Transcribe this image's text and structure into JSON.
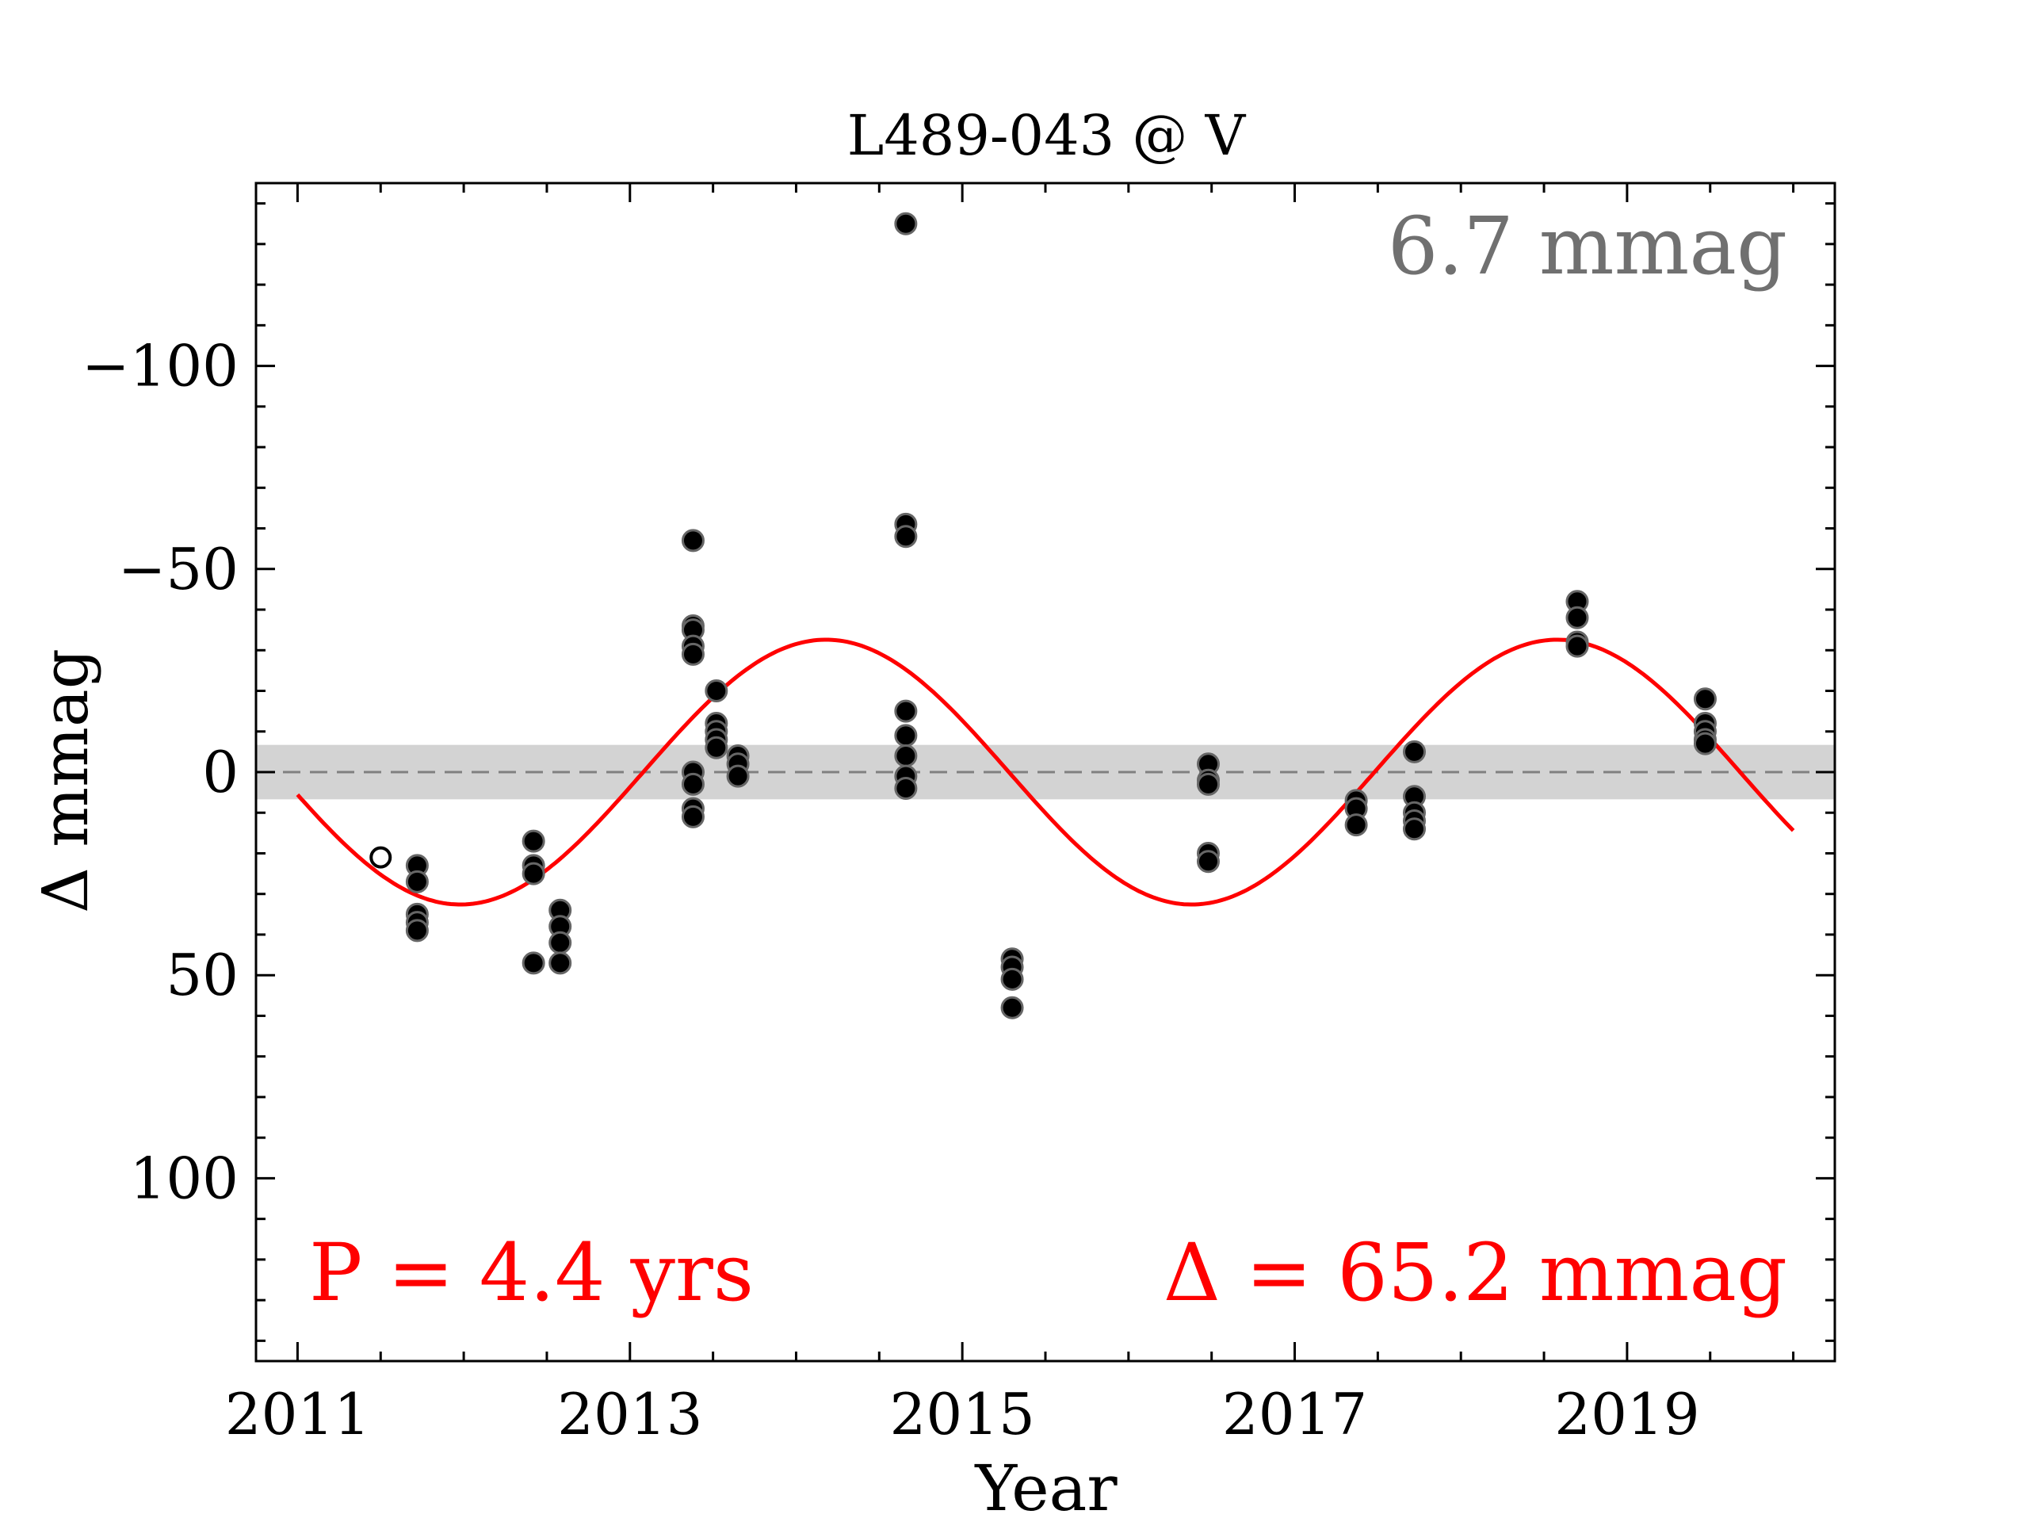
{
  "chart_data": {
    "type": "scatter",
    "title": "L489-043 @ V",
    "xlabel": "Year",
    "ylabel": "Δ  mmag",
    "xlim": [
      2010.75,
      2020.25
    ],
    "ylim": [
      145,
      -145
    ],
    "y_inverted": true,
    "xticks": [
      2011,
      2013,
      2015,
      2017,
      2019
    ],
    "yticks": [
      -100,
      -50,
      0,
      50,
      100
    ],
    "ytick_labels": [
      "−100",
      "−50",
      "0",
      "50",
      "100"
    ],
    "grid": false,
    "band": {
      "center": 0,
      "halfwidth": 6.7,
      "color": "#d3d3d3"
    },
    "annotations": {
      "scatter_label": "6.7 mmag",
      "period_label": "P = 4.4 yrs",
      "amplitude_label": "Δ = 65.2 mmag"
    },
    "colors": {
      "fit": "#ff0000",
      "points": "#000000",
      "band": "#d3d3d3",
      "scatter_text": "#707070",
      "zero_line": "#808080"
    },
    "fit": {
      "type": "sinusoid",
      "period": 4.4,
      "amplitude": 32.6,
      "phase_min_x": 2011.98,
      "x_start": 2011.0,
      "x_end": 2020.0
    },
    "points": [
      {
        "x": 2011.72,
        "y": 23
      },
      {
        "x": 2011.72,
        "y": 27
      },
      {
        "x": 2011.72,
        "y": 35
      },
      {
        "x": 2011.72,
        "y": 37
      },
      {
        "x": 2011.72,
        "y": 39
      },
      {
        "x": 2012.42,
        "y": 17
      },
      {
        "x": 2012.42,
        "y": 23
      },
      {
        "x": 2012.42,
        "y": 25
      },
      {
        "x": 2012.42,
        "y": 47
      },
      {
        "x": 2012.58,
        "y": 34
      },
      {
        "x": 2012.58,
        "y": 38
      },
      {
        "x": 2012.58,
        "y": 42
      },
      {
        "x": 2012.58,
        "y": 47
      },
      {
        "x": 2013.38,
        "y": -57
      },
      {
        "x": 2013.38,
        "y": -36
      },
      {
        "x": 2013.38,
        "y": -35
      },
      {
        "x": 2013.38,
        "y": -31
      },
      {
        "x": 2013.38,
        "y": -29
      },
      {
        "x": 2013.38,
        "y": 0
      },
      {
        "x": 2013.38,
        "y": 3
      },
      {
        "x": 2013.38,
        "y": 9
      },
      {
        "x": 2013.38,
        "y": 11
      },
      {
        "x": 2013.52,
        "y": -20
      },
      {
        "x": 2013.52,
        "y": -12
      },
      {
        "x": 2013.52,
        "y": -10
      },
      {
        "x": 2013.52,
        "y": -8
      },
      {
        "x": 2013.52,
        "y": -6
      },
      {
        "x": 2013.65,
        "y": -4
      },
      {
        "x": 2013.65,
        "y": -2
      },
      {
        "x": 2013.65,
        "y": 1
      },
      {
        "x": 2014.66,
        "y": -135
      },
      {
        "x": 2014.66,
        "y": -61
      },
      {
        "x": 2014.66,
        "y": -58
      },
      {
        "x": 2014.66,
        "y": -15
      },
      {
        "x": 2014.66,
        "y": -9
      },
      {
        "x": 2014.66,
        "y": -4
      },
      {
        "x": 2014.66,
        "y": 1
      },
      {
        "x": 2014.66,
        "y": 4
      },
      {
        "x": 2015.3,
        "y": 46
      },
      {
        "x": 2015.3,
        "y": 48
      },
      {
        "x": 2015.3,
        "y": 51
      },
      {
        "x": 2015.3,
        "y": 58
      },
      {
        "x": 2016.48,
        "y": -2
      },
      {
        "x": 2016.48,
        "y": 2
      },
      {
        "x": 2016.48,
        "y": 3
      },
      {
        "x": 2016.48,
        "y": 20
      },
      {
        "x": 2016.48,
        "y": 22
      },
      {
        "x": 2017.37,
        "y": 7
      },
      {
        "x": 2017.37,
        "y": 9
      },
      {
        "x": 2017.37,
        "y": 13
      },
      {
        "x": 2017.72,
        "y": -5
      },
      {
        "x": 2017.72,
        "y": 6
      },
      {
        "x": 2017.72,
        "y": 10
      },
      {
        "x": 2017.72,
        "y": 12
      },
      {
        "x": 2017.72,
        "y": 14
      },
      {
        "x": 2018.7,
        "y": -42
      },
      {
        "x": 2018.7,
        "y": -38
      },
      {
        "x": 2018.7,
        "y": -32
      },
      {
        "x": 2018.7,
        "y": -31
      },
      {
        "x": 2019.47,
        "y": -18
      },
      {
        "x": 2019.47,
        "y": -12
      },
      {
        "x": 2019.47,
        "y": -10
      },
      {
        "x": 2019.47,
        "y": -8
      },
      {
        "x": 2019.47,
        "y": -7
      }
    ],
    "open_points": [
      {
        "x": 2011.5,
        "y": 21
      }
    ]
  }
}
